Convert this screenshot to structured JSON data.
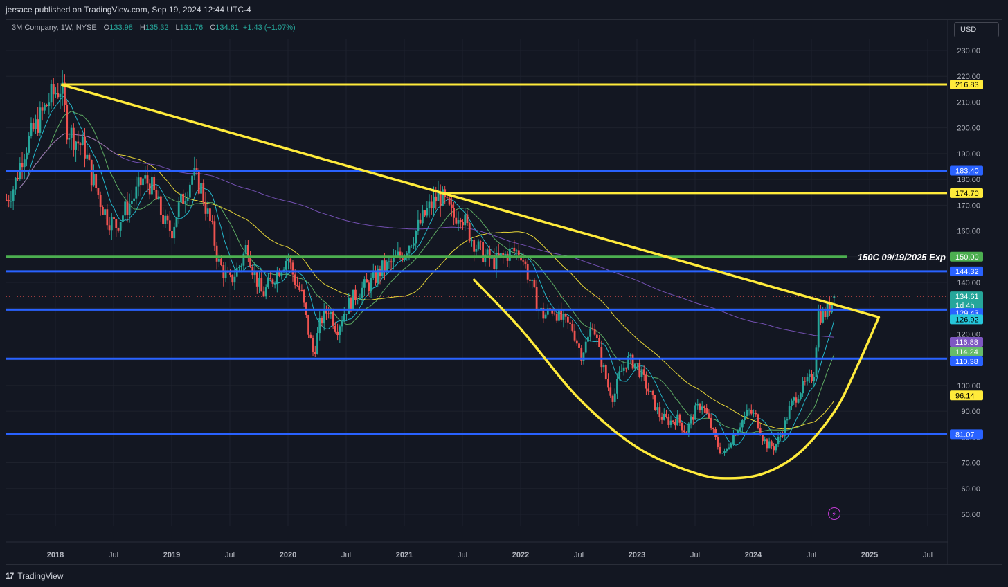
{
  "header": {
    "published_text": "jersace published on TradingView.com, Sep 19, 2024 12:44 UTC-4"
  },
  "legend": {
    "symbol": "3M Company, 1W, NYSE",
    "o_label": "O",
    "o_value": "133.98",
    "h_label": "H",
    "h_value": "135.32",
    "l_label": "L",
    "l_value": "131.76",
    "c_label": "C",
    "c_value": "134.61",
    "change": "+1.43 (+1.07%)"
  },
  "currency_button": "USD",
  "footer": {
    "brand": "TradingView"
  },
  "colors": {
    "background": "#131722",
    "up": "#26a69a",
    "down": "#ef5350",
    "yellow": "#ffeb3b",
    "blue": "#2962ff",
    "green_line": "#4caf50",
    "purple": "#7e57c2"
  },
  "chart_data": {
    "type": "candlestick",
    "interval": "1W",
    "y_axis": {
      "ticks": [
        "230.00",
        "220.00",
        "210.00",
        "200.00",
        "190.00",
        "180.00",
        "170.00",
        "160.00",
        "150.00",
        "140.00",
        "130.00",
        "120.00",
        "110.00",
        "100.00",
        "90.00",
        "80.00",
        "70.00",
        "60.00",
        "50.00"
      ],
      "tick_values": [
        230,
        220,
        210,
        200,
        190,
        180,
        170,
        160,
        150,
        140,
        130,
        120,
        110,
        100,
        90,
        80,
        70,
        60,
        50
      ]
    },
    "x_axis": {
      "ticks": [
        "2018",
        "Jul",
        "2019",
        "Jul",
        "2020",
        "Jul",
        "2021",
        "Jul",
        "2022",
        "Jul",
        "2023",
        "Jul",
        "2024",
        "Jul",
        "2025",
        "Jul"
      ],
      "tick_dates": [
        2018.0,
        2018.5,
        2019.0,
        2019.5,
        2020.0,
        2020.5,
        2021.0,
        2021.5,
        2022.0,
        2022.5,
        2023.0,
        2023.5,
        2024.0,
        2024.5,
        2025.0,
        2025.5
      ]
    },
    "close_path": [
      [
        2017.58,
        172
      ],
      [
        2017.65,
        178
      ],
      [
        2017.72,
        190
      ],
      [
        2017.8,
        198
      ],
      [
        2017.88,
        205
      ],
      [
        2017.96,
        212
      ],
      [
        2018.05,
        216
      ],
      [
        2018.1,
        200
      ],
      [
        2018.18,
        195
      ],
      [
        2018.25,
        192
      ],
      [
        2018.3,
        183
      ],
      [
        2018.4,
        170
      ],
      [
        2018.45,
        165
      ],
      [
        2018.52,
        162
      ],
      [
        2018.6,
        168
      ],
      [
        2018.7,
        175
      ],
      [
        2018.75,
        180
      ],
      [
        2018.82,
        178
      ],
      [
        2018.9,
        168
      ],
      [
        2018.95,
        162
      ],
      [
        2019.0,
        160
      ],
      [
        2019.05,
        168
      ],
      [
        2019.12,
        175
      ],
      [
        2019.18,
        182
      ],
      [
        2019.25,
        177
      ],
      [
        2019.3,
        168
      ],
      [
        2019.35,
        160
      ],
      [
        2019.4,
        148
      ],
      [
        2019.5,
        140
      ],
      [
        2019.6,
        148
      ],
      [
        2019.65,
        155
      ],
      [
        2019.7,
        145
      ],
      [
        2019.78,
        135
      ],
      [
        2019.85,
        140
      ],
      [
        2019.92,
        145
      ],
      [
        2020.0,
        150
      ],
      [
        2020.05,
        142
      ],
      [
        2020.12,
        135
      ],
      [
        2020.18,
        120
      ],
      [
        2020.22,
        112
      ],
      [
        2020.28,
        125
      ],
      [
        2020.35,
        130
      ],
      [
        2020.42,
        122
      ],
      [
        2020.5,
        130
      ],
      [
        2020.58,
        135
      ],
      [
        2020.65,
        138
      ],
      [
        2020.72,
        140
      ],
      [
        2020.8,
        145
      ],
      [
        2020.88,
        147
      ],
      [
        2020.95,
        150
      ],
      [
        2021.0,
        152
      ],
      [
        2021.1,
        160
      ],
      [
        2021.2,
        168
      ],
      [
        2021.3,
        174
      ],
      [
        2021.36,
        170
      ],
      [
        2021.42,
        165
      ],
      [
        2021.48,
        168
      ],
      [
        2021.55,
        160
      ],
      [
        2021.62,
        154
      ],
      [
        2021.7,
        150
      ],
      [
        2021.78,
        148
      ],
      [
        2021.85,
        150
      ],
      [
        2021.92,
        152
      ],
      [
        2022.0,
        152
      ],
      [
        2022.05,
        145
      ],
      [
        2022.1,
        138
      ],
      [
        2022.15,
        130
      ],
      [
        2022.2,
        127
      ],
      [
        2022.28,
        130
      ],
      [
        2022.36,
        125
      ],
      [
        2022.45,
        122
      ],
      [
        2022.52,
        112
      ],
      [
        2022.58,
        118
      ],
      [
        2022.62,
        125
      ],
      [
        2022.68,
        112
      ],
      [
        2022.75,
        100
      ],
      [
        2022.8,
        95
      ],
      [
        2022.85,
        104
      ],
      [
        2022.92,
        110
      ],
      [
        2023.0,
        108
      ],
      [
        2023.06,
        102
      ],
      [
        2023.12,
        96
      ],
      [
        2023.2,
        88
      ],
      [
        2023.28,
        86
      ],
      [
        2023.35,
        87
      ],
      [
        2023.42,
        82
      ],
      [
        2023.5,
        90
      ],
      [
        2023.56,
        93
      ],
      [
        2023.62,
        86
      ],
      [
        2023.7,
        76
      ],
      [
        2023.75,
        73
      ],
      [
        2023.82,
        80
      ],
      [
        2023.9,
        86
      ],
      [
        2023.96,
        90
      ],
      [
        2024.02,
        88
      ],
      [
        2024.08,
        80
      ],
      [
        2024.12,
        77
      ],
      [
        2024.18,
        76
      ],
      [
        2024.25,
        82
      ],
      [
        2024.32,
        92
      ],
      [
        2024.4,
        98
      ],
      [
        2024.48,
        102
      ],
      [
        2024.52,
        104
      ],
      [
        2024.56,
        128
      ],
      [
        2024.6,
        127
      ],
      [
        2024.65,
        130
      ],
      [
        2024.7,
        134.61
      ]
    ],
    "horizontal_levels": [
      {
        "value": 216.83,
        "label": "216.83",
        "color": "yellow",
        "x_start": 2018.05
      },
      {
        "value": 183.4,
        "label": "183.40",
        "color": "blue",
        "x_start": 2017.55
      },
      {
        "value": 174.7,
        "label": "174.70",
        "color": "yellow",
        "x_start": 2021.3
      },
      {
        "value": 150.0,
        "label": "150.00",
        "color": "green",
        "x_start": 2017.55,
        "annotation": "150C 09/19/2025 Exp"
      },
      {
        "value": 144.32,
        "label": "144.32",
        "color": "blue",
        "x_start": 2017.55
      },
      {
        "value": 129.43,
        "label": "129.43",
        "color": "blue",
        "x_start": 2017.55
      },
      {
        "value": 110.38,
        "label": "110.38",
        "color": "blue",
        "x_start": 2017.55
      },
      {
        "value": 81.07,
        "label": "81.07",
        "color": "blue",
        "x_start": 2017.55
      }
    ],
    "trendline": {
      "from": [
        2018.05,
        216.83
      ],
      "to": [
        2025.08,
        126.5
      ]
    },
    "cup_curve": [
      [
        2021.6,
        141
      ],
      [
        2022.0,
        122
      ],
      [
        2022.5,
        95
      ],
      [
        2023.0,
        76
      ],
      [
        2023.5,
        66
      ],
      [
        2023.8,
        64
      ],
      [
        2024.1,
        66
      ],
      [
        2024.4,
        74
      ],
      [
        2024.7,
        90
      ],
      [
        2024.9,
        108
      ],
      [
        2025.08,
        126.5
      ]
    ],
    "moving_averages": [
      {
        "name": "MA fast",
        "color": "#26c6da",
        "value_label": "126.92"
      },
      {
        "name": "MA mid",
        "color": "#66bb6a",
        "value_label": "114.24"
      },
      {
        "name": "MA slow",
        "color": "#ffeb3b",
        "value_label": "96.14"
      },
      {
        "name": "MA long",
        "color": "#7e57c2",
        "value_label": "116.88"
      }
    ],
    "last_price": {
      "value": 134.61,
      "label": "134.61",
      "countdown": "1d 4h"
    }
  }
}
